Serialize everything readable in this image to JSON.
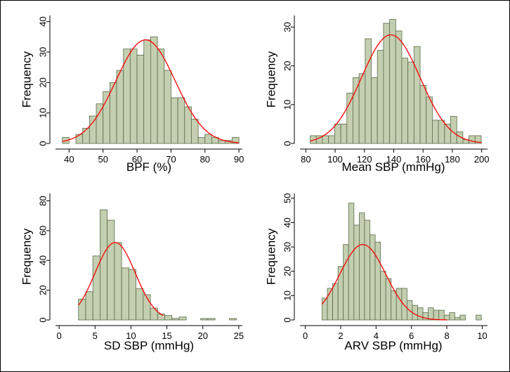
{
  "colors": {
    "bar_fill": "#c3cfb0",
    "bar_stroke": "#5a6a4a",
    "fit_line": "#ff0000",
    "frame": "#000000"
  },
  "chart_data": [
    {
      "id": "bpf",
      "type": "bar",
      "title": "",
      "xlabel": "BPF (%)",
      "ylabel": "Frequency",
      "xlim": [
        36,
        91
      ],
      "ylim": [
        0,
        42
      ],
      "xticks": [
        40,
        50,
        60,
        70,
        80,
        90
      ],
      "yticks": [
        0,
        10,
        20,
        30,
        40
      ],
      "bin_width": 2,
      "bins": [
        {
          "x0": 38,
          "count": 2
        },
        {
          "x0": 42,
          "count": 3
        },
        {
          "x0": 44,
          "count": 5
        },
        {
          "x0": 46,
          "count": 9
        },
        {
          "x0": 48,
          "count": 13
        },
        {
          "x0": 50,
          "count": 17
        },
        {
          "x0": 52,
          "count": 20
        },
        {
          "x0": 54,
          "count": 24
        },
        {
          "x0": 56,
          "count": 31
        },
        {
          "x0": 58,
          "count": 31
        },
        {
          "x0": 60,
          "count": 29
        },
        {
          "x0": 62,
          "count": 34
        },
        {
          "x0": 64,
          "count": 35
        },
        {
          "x0": 66,
          "count": 31
        },
        {
          "x0": 68,
          "count": 24
        },
        {
          "x0": 70,
          "count": 15
        },
        {
          "x0": 72,
          "count": 15
        },
        {
          "x0": 74,
          "count": 12
        },
        {
          "x0": 76,
          "count": 8
        },
        {
          "x0": 78,
          "count": 2
        },
        {
          "x0": 80,
          "count": 3
        },
        {
          "x0": 82,
          "count": 2
        },
        {
          "x0": 84,
          "count": 1
        },
        {
          "x0": 86,
          "count": 1
        },
        {
          "x0": 88,
          "count": 2
        }
      ],
      "fit": {
        "type": "normal",
        "mean": 62.5,
        "sd": 8.7,
        "peak": 34,
        "x_range": [
          38,
          90
        ]
      }
    },
    {
      "id": "mean-sbp",
      "type": "bar",
      "title": "",
      "xlabel": "Mean SBP (mmHg)",
      "ylabel": "Frequency",
      "xlim": [
        76,
        204
      ],
      "ylim": [
        0,
        33
      ],
      "xticks": [
        80,
        100,
        120,
        140,
        160,
        180,
        200
      ],
      "yticks": [
        0,
        10,
        20,
        30
      ],
      "bin_width": 4.17,
      "bins": [
        {
          "x0": 83,
          "count": 2
        },
        {
          "x0": 87.17,
          "count": 2
        },
        {
          "x0": 91.33,
          "count": 2
        },
        {
          "x0": 95.5,
          "count": 2
        },
        {
          "x0": 99.67,
          "count": 5
        },
        {
          "x0": 103.83,
          "count": 5
        },
        {
          "x0": 108,
          "count": 13
        },
        {
          "x0": 112.17,
          "count": 17
        },
        {
          "x0": 116.33,
          "count": 18
        },
        {
          "x0": 120.5,
          "count": 27
        },
        {
          "x0": 124.67,
          "count": 17
        },
        {
          "x0": 128.83,
          "count": 24
        },
        {
          "x0": 133,
          "count": 31
        },
        {
          "x0": 137.17,
          "count": 32
        },
        {
          "x0": 141.33,
          "count": 29
        },
        {
          "x0": 145.5,
          "count": 22
        },
        {
          "x0": 149.67,
          "count": 21
        },
        {
          "x0": 153.83,
          "count": 25
        },
        {
          "x0": 158,
          "count": 15
        },
        {
          "x0": 162.17,
          "count": 12
        },
        {
          "x0": 166.33,
          "count": 6
        },
        {
          "x0": 170.5,
          "count": 6
        },
        {
          "x0": 174.67,
          "count": 5
        },
        {
          "x0": 178.83,
          "count": 7
        },
        {
          "x0": 183,
          "count": 3
        },
        {
          "x0": 187.17,
          "count": 1
        },
        {
          "x0": 191.33,
          "count": 2
        },
        {
          "x0": 195.5,
          "count": 2
        }
      ],
      "fit": {
        "type": "normal",
        "mean": 138,
        "sd": 20,
        "peak": 28,
        "x_range": [
          83,
          200
        ]
      }
    },
    {
      "id": "sd-sbp",
      "type": "bar",
      "title": "",
      "xlabel": "SD SBP (mmHg)",
      "ylabel": "Frequency",
      "xlim": [
        -0.5,
        25.5
      ],
      "ylim": [
        0,
        85
      ],
      "xticks": [
        0,
        5,
        10,
        15,
        20,
        25
      ],
      "yticks": [
        0,
        20,
        40,
        60,
        80
      ],
      "bin_width": 1,
      "bins": [
        {
          "x0": 2.7,
          "count": 14
        },
        {
          "x0": 3.7,
          "count": 19
        },
        {
          "x0": 4.7,
          "count": 43
        },
        {
          "x0": 5.7,
          "count": 74
        },
        {
          "x0": 6.7,
          "count": 67
        },
        {
          "x0": 7.7,
          "count": 52
        },
        {
          "x0": 8.7,
          "count": 35
        },
        {
          "x0": 9.7,
          "count": 34
        },
        {
          "x0": 10.7,
          "count": 21
        },
        {
          "x0": 11.7,
          "count": 17
        },
        {
          "x0": 12.7,
          "count": 8
        },
        {
          "x0": 13.7,
          "count": 4
        },
        {
          "x0": 14.7,
          "count": 3
        },
        {
          "x0": 15.7,
          "count": 1
        },
        {
          "x0": 16.7,
          "count": 2
        },
        {
          "x0": 19.7,
          "count": 1
        },
        {
          "x0": 20.7,
          "count": 1
        },
        {
          "x0": 23.7,
          "count": 1
        }
      ],
      "fit": {
        "type": "normal",
        "mean": 7.8,
        "sd": 2.8,
        "peak": 52,
        "x_range": [
          2.7,
          14.5
        ]
      }
    },
    {
      "id": "arv-sbp",
      "type": "bar",
      "title": "",
      "xlabel": "ARV SBP (mmHg)",
      "ylabel": "Frequency",
      "xlim": [
        -0.3,
        10.3
      ],
      "ylim": [
        0,
        52
      ],
      "xticks": [
        0,
        2,
        4,
        6,
        8,
        10
      ],
      "yticks": [
        0,
        10,
        20,
        30,
        40,
        50
      ],
      "bin_width": 0.3,
      "bins": [
        {
          "x0": 0.95,
          "count": 9
        },
        {
          "x0": 1.25,
          "count": 13
        },
        {
          "x0": 1.55,
          "count": 15
        },
        {
          "x0": 1.85,
          "count": 22
        },
        {
          "x0": 2.15,
          "count": 31
        },
        {
          "x0": 2.45,
          "count": 48
        },
        {
          "x0": 2.75,
          "count": 39
        },
        {
          "x0": 3.05,
          "count": 44
        },
        {
          "x0": 3.35,
          "count": 41
        },
        {
          "x0": 3.65,
          "count": 35
        },
        {
          "x0": 3.95,
          "count": 32
        },
        {
          "x0": 4.25,
          "count": 20
        },
        {
          "x0": 4.55,
          "count": 17
        },
        {
          "x0": 4.85,
          "count": 12
        },
        {
          "x0": 5.15,
          "count": 13
        },
        {
          "x0": 5.45,
          "count": 13
        },
        {
          "x0": 5.75,
          "count": 8
        },
        {
          "x0": 6.05,
          "count": 6
        },
        {
          "x0": 6.35,
          "count": 5
        },
        {
          "x0": 6.65,
          "count": 3
        },
        {
          "x0": 6.95,
          "count": 5
        },
        {
          "x0": 7.25,
          "count": 4
        },
        {
          "x0": 7.55,
          "count": 4
        },
        {
          "x0": 7.85,
          "count": 2
        },
        {
          "x0": 8.15,
          "count": 3
        },
        {
          "x0": 8.45,
          "count": 1
        },
        {
          "x0": 8.75,
          "count": 2
        },
        {
          "x0": 9.65,
          "count": 2
        }
      ],
      "fit": {
        "type": "normal",
        "mean": 3.25,
        "sd": 1.3,
        "peak": 31,
        "x_range": [
          0.95,
          8
        ]
      }
    }
  ]
}
